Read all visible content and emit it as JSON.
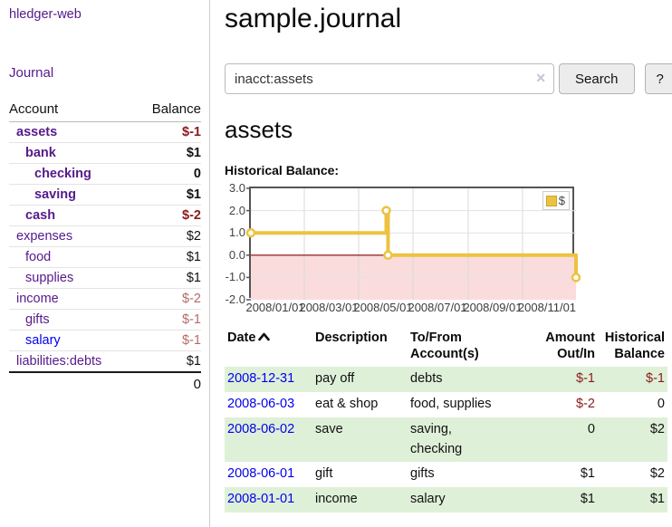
{
  "app": {
    "title": "hledger-web"
  },
  "sidebar": {
    "journal_label": "Journal",
    "accounts_table": {
      "headers": {
        "account": "Account",
        "balance": "Balance"
      },
      "rows": [
        {
          "name": "assets",
          "balance": "$-1",
          "indent": 1,
          "bold": true,
          "name_color": "#551a8b",
          "balance_color": "#8b1a1a"
        },
        {
          "name": "bank",
          "balance": "$1",
          "indent": 2,
          "bold": true,
          "name_color": "#551a8b",
          "balance_color": "#111111"
        },
        {
          "name": "checking",
          "balance": "0",
          "indent": 3,
          "bold": true,
          "name_color": "#551a8b",
          "balance_color": "#111111"
        },
        {
          "name": "saving",
          "balance": "$1",
          "indent": 3,
          "bold": true,
          "name_color": "#551a8b",
          "balance_color": "#111111"
        },
        {
          "name": "cash",
          "balance": "$-2",
          "indent": 2,
          "bold": true,
          "name_color": "#551a8b",
          "balance_color": "#8b1a1a"
        },
        {
          "name": "expenses",
          "balance": "$2",
          "indent": 1,
          "bold": false,
          "name_color": "#551a8b",
          "balance_color": "#111111"
        },
        {
          "name": "food",
          "balance": "$1",
          "indent": 2,
          "bold": false,
          "name_color": "#551a8b",
          "balance_color": "#111111"
        },
        {
          "name": "supplies",
          "balance": "$1",
          "indent": 2,
          "bold": false,
          "name_color": "#551a8b",
          "balance_color": "#111111"
        },
        {
          "name": "income",
          "balance": "$-2",
          "indent": 1,
          "bold": false,
          "name_color": "#551a8b",
          "balance_color": "#b56a6a"
        },
        {
          "name": "gifts",
          "balance": "$-1",
          "indent": 2,
          "bold": false,
          "name_color": "#551a8b",
          "balance_color": "#b56a6a"
        },
        {
          "name": "salary",
          "balance": "$-1",
          "indent": 2,
          "bold": false,
          "name_color": "#0000ee",
          "balance_color": "#b56a6a"
        },
        {
          "name": "liabilities:debts",
          "balance": "$1",
          "indent": 1,
          "bold": false,
          "name_color": "#551a8b",
          "balance_color": "#111111"
        }
      ],
      "total": "0"
    }
  },
  "main": {
    "page_title": "sample.journal",
    "search": {
      "value": "inacct:assets",
      "clear_icon": "✕",
      "button_label": "Search",
      "help_label": "?"
    },
    "account_heading": "assets",
    "chart_label": "Historical Balance:"
  },
  "chart_data": {
    "type": "line",
    "title": "Historical Balance",
    "series": [
      {
        "name": "$",
        "points": [
          [
            "2008-01-01",
            1
          ],
          [
            "2008-06-01",
            2
          ],
          [
            "2008-06-03",
            0
          ],
          [
            "2008-12-31",
            -1
          ]
        ]
      }
    ],
    "step": true,
    "x_ticks": [
      "2008/01/01",
      "2008/03/01",
      "2008/05/01",
      "2008/07/01",
      "2008/09/01",
      "2008/11/01"
    ],
    "y_ticks": [
      "3.0",
      "2.0",
      "1.0",
      "0.0",
      "-1.0",
      "-2.0"
    ],
    "ylim": [
      -2,
      3
    ],
    "legend": "$",
    "legend_position": "top-right",
    "grid": true,
    "line_color": "#edc240",
    "negative_region_color": "#fbdcdc",
    "zero_line_color": "#8b0000"
  },
  "register": {
    "headers": {
      "date": "Date",
      "description": "Description",
      "accounts": "To/From\nAccount(s)",
      "amount": "Amount\nOut/In",
      "balance": "Historical\nBalance"
    },
    "rows": [
      {
        "date": "2008-12-31",
        "description": "pay off",
        "accounts": "debts",
        "amount": "$-1",
        "balance": "$-1",
        "amount_neg": true,
        "balance_neg": true,
        "shaded": true
      },
      {
        "date": "2008-06-03",
        "description": "eat & shop",
        "accounts": "food, supplies",
        "amount": "$-2",
        "balance": "0",
        "amount_neg": true,
        "balance_neg": false,
        "shaded": false
      },
      {
        "date": "2008-06-02",
        "description": "save",
        "accounts": "saving,\nchecking",
        "amount": "0",
        "balance": "$2",
        "amount_neg": false,
        "balance_neg": false,
        "shaded": true
      },
      {
        "date": "2008-06-01",
        "description": "gift",
        "accounts": "gifts",
        "amount": "$1",
        "balance": "$2",
        "amount_neg": false,
        "balance_neg": false,
        "shaded": false
      },
      {
        "date": "2008-01-01",
        "description": "income",
        "accounts": "salary",
        "amount": "$1",
        "balance": "$1",
        "amount_neg": false,
        "balance_neg": false,
        "shaded": true
      }
    ]
  }
}
